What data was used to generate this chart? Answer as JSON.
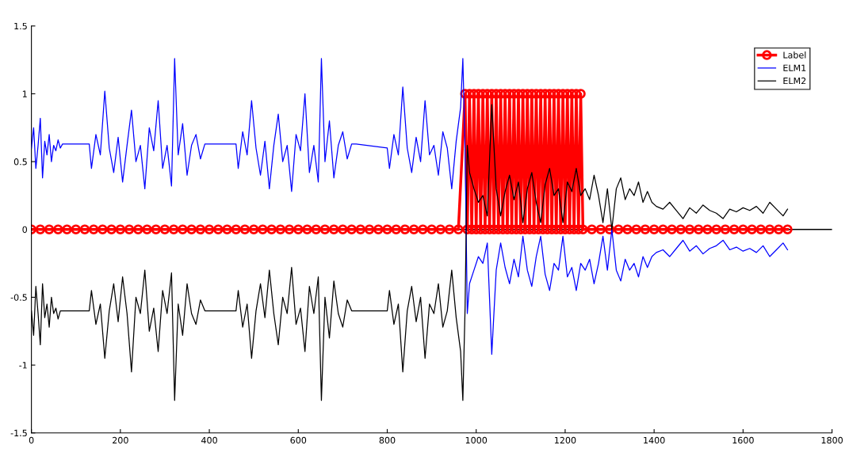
{
  "chart_data": {
    "type": "line",
    "xlim": [
      0,
      1800
    ],
    "xticks": [
      0,
      200,
      400,
      600,
      800,
      1000,
      1200,
      1400,
      1600,
      1800
    ],
    "ylim": [
      -1.5,
      1.5
    ],
    "yticks": [
      -1.5,
      -1,
      -0.5,
      0,
      0.5,
      1,
      1.5
    ],
    "grid": false,
    "legend": "top right",
    "ref_lines": [
      {
        "axis": "y",
        "value": 0,
        "color": "#000000"
      }
    ],
    "series": [
      {
        "name": "Label",
        "color": "#ff0000",
        "marker": "circle",
        "x": [
          0,
          20,
          40,
          60,
          80,
          100,
          120,
          140,
          160,
          180,
          200,
          220,
          240,
          260,
          280,
          300,
          320,
          340,
          360,
          380,
          400,
          420,
          440,
          460,
          480,
          500,
          520,
          540,
          560,
          580,
          600,
          620,
          640,
          660,
          680,
          700,
          720,
          740,
          760,
          780,
          800,
          820,
          840,
          860,
          880,
          900,
          920,
          940,
          960,
          975,
          980,
          985,
          990,
          995,
          1000,
          1005,
          1010,
          1015,
          1020,
          1025,
          1030,
          1035,
          1040,
          1045,
          1050,
          1055,
          1060,
          1065,
          1070,
          1075,
          1080,
          1085,
          1090,
          1095,
          1100,
          1105,
          1110,
          1115,
          1120,
          1125,
          1130,
          1135,
          1140,
          1145,
          1150,
          1155,
          1160,
          1165,
          1170,
          1175,
          1180,
          1185,
          1190,
          1195,
          1200,
          1205,
          1210,
          1215,
          1220,
          1225,
          1230,
          1235,
          1240,
          1260,
          1280,
          1300,
          1320,
          1340,
          1360,
          1380,
          1400,
          1420,
          1440,
          1460,
          1480,
          1500,
          1520,
          1540,
          1560,
          1580,
          1600,
          1620,
          1640,
          1660,
          1680,
          1700
        ],
        "values": [
          0,
          0,
          0,
          0,
          0,
          0,
          0,
          0,
          0,
          0,
          0,
          0,
          0,
          0,
          0,
          0,
          0,
          0,
          0,
          0,
          0,
          0,
          0,
          0,
          0,
          0,
          0,
          0,
          0,
          0,
          0,
          0,
          0,
          0,
          0,
          0,
          0,
          0,
          0,
          0,
          0,
          0,
          0,
          0,
          0,
          0,
          0,
          0,
          0,
          1,
          0,
          1,
          0,
          1,
          0,
          1,
          0,
          1,
          0,
          1,
          0,
          1,
          0,
          1,
          0,
          1,
          0,
          1,
          0,
          1,
          0,
          1,
          0,
          1,
          0,
          1,
          0,
          1,
          0,
          1,
          0,
          1,
          0,
          1,
          0,
          1,
          0,
          1,
          0,
          1,
          0,
          1,
          0,
          1,
          0,
          1,
          0,
          1,
          0,
          1,
          0,
          1,
          0,
          0,
          0,
          0,
          0,
          0,
          0,
          0,
          0,
          0,
          0,
          0,
          0,
          0,
          0,
          0,
          0,
          0,
          0,
          0,
          0,
          0,
          0,
          0
        ]
      },
      {
        "name": "ELM1",
        "color": "#0000ff",
        "x": [
          0,
          5,
          10,
          15,
          20,
          25,
          30,
          35,
          40,
          45,
          50,
          55,
          60,
          65,
          70,
          80,
          130,
          135,
          145,
          155,
          165,
          175,
          185,
          195,
          205,
          215,
          225,
          235,
          245,
          255,
          265,
          275,
          285,
          295,
          305,
          315,
          322,
          330,
          340,
          350,
          360,
          370,
          380,
          390,
          400,
          460,
          465,
          475,
          485,
          495,
          505,
          515,
          525,
          535,
          545,
          555,
          565,
          575,
          585,
          595,
          605,
          615,
          625,
          635,
          645,
          652,
          660,
          670,
          680,
          690,
          700,
          710,
          720,
          730,
          800,
          805,
          815,
          825,
          835,
          845,
          855,
          865,
          875,
          885,
          895,
          905,
          915,
          925,
          935,
          945,
          955,
          965,
          970,
          975,
          980,
          985,
          995,
          1005,
          1015,
          1025,
          1035,
          1045,
          1055,
          1065,
          1075,
          1085,
          1095,
          1105,
          1115,
          1125,
          1135,
          1145,
          1155,
          1165,
          1175,
          1185,
          1195,
          1205,
          1215,
          1225,
          1235,
          1245,
          1255,
          1265,
          1275,
          1285,
          1295,
          1305,
          1315,
          1325,
          1335,
          1345,
          1355,
          1365,
          1375,
          1385,
          1395,
          1405,
          1420,
          1435,
          1450,
          1465,
          1480,
          1495,
          1510,
          1525,
          1540,
          1555,
          1570,
          1585,
          1600,
          1615,
          1630,
          1645,
          1660,
          1675,
          1690,
          1700
        ],
        "values": [
          0.6,
          0.75,
          0.45,
          0.62,
          0.82,
          0.38,
          0.65,
          0.55,
          0.7,
          0.5,
          0.62,
          0.58,
          0.66,
          0.6,
          0.63,
          0.63,
          0.63,
          0.45,
          0.7,
          0.55,
          1.02,
          0.6,
          0.42,
          0.68,
          0.35,
          0.62,
          0.88,
          0.5,
          0.62,
          0.3,
          0.75,
          0.58,
          0.95,
          0.45,
          0.62,
          0.32,
          1.26,
          0.55,
          0.78,
          0.4,
          0.62,
          0.7,
          0.52,
          0.63,
          0.63,
          0.63,
          0.45,
          0.72,
          0.55,
          0.95,
          0.6,
          0.4,
          0.65,
          0.3,
          0.62,
          0.85,
          0.5,
          0.62,
          0.28,
          0.7,
          0.58,
          1.0,
          0.42,
          0.62,
          0.35,
          1.26,
          0.5,
          0.8,
          0.38,
          0.62,
          0.72,
          0.52,
          0.63,
          0.63,
          0.6,
          0.45,
          0.7,
          0.55,
          1.05,
          0.6,
          0.42,
          0.68,
          0.5,
          0.95,
          0.55,
          0.62,
          0.4,
          0.72,
          0.6,
          0.3,
          0.65,
          0.9,
          1.26,
          0.58,
          -0.62,
          -0.4,
          -0.3,
          -0.2,
          -0.25,
          -0.1,
          -0.92,
          -0.3,
          -0.1,
          -0.28,
          -0.4,
          -0.22,
          -0.35,
          -0.05,
          -0.3,
          -0.42,
          -0.2,
          -0.05,
          -0.33,
          -0.45,
          -0.25,
          -0.3,
          -0.05,
          -0.35,
          -0.28,
          -0.45,
          -0.25,
          -0.3,
          -0.22,
          -0.4,
          -0.25,
          -0.05,
          -0.3,
          0.0,
          -0.3,
          -0.38,
          -0.22,
          -0.3,
          -0.25,
          -0.35,
          -0.2,
          -0.28,
          -0.2,
          -0.17,
          -0.15,
          -0.2,
          -0.14,
          -0.08,
          -0.16,
          -0.12,
          -0.18,
          -0.14,
          -0.12,
          -0.08,
          -0.15,
          -0.13,
          -0.16,
          -0.14,
          -0.17,
          -0.12,
          -0.2,
          -0.15,
          -0.1,
          -0.15
        ]
      },
      {
        "name": "ELM2",
        "color": "#000000",
        "x": [
          0,
          5,
          10,
          15,
          20,
          25,
          30,
          35,
          40,
          45,
          50,
          55,
          60,
          65,
          70,
          80,
          130,
          135,
          145,
          155,
          165,
          175,
          185,
          195,
          205,
          215,
          225,
          235,
          245,
          255,
          265,
          275,
          285,
          295,
          305,
          315,
          322,
          330,
          340,
          350,
          360,
          370,
          380,
          390,
          400,
          460,
          465,
          475,
          485,
          495,
          505,
          515,
          525,
          535,
          545,
          555,
          565,
          575,
          585,
          595,
          605,
          615,
          625,
          635,
          645,
          652,
          660,
          670,
          680,
          690,
          700,
          710,
          720,
          730,
          800,
          805,
          815,
          825,
          835,
          845,
          855,
          865,
          875,
          885,
          895,
          905,
          915,
          925,
          935,
          945,
          955,
          965,
          970,
          975,
          980,
          985,
          995,
          1005,
          1015,
          1025,
          1035,
          1045,
          1055,
          1065,
          1075,
          1085,
          1095,
          1105,
          1115,
          1125,
          1135,
          1145,
          1155,
          1165,
          1175,
          1185,
          1195,
          1205,
          1215,
          1225,
          1235,
          1245,
          1255,
          1265,
          1275,
          1285,
          1295,
          1305,
          1315,
          1325,
          1335,
          1345,
          1355,
          1365,
          1375,
          1385,
          1395,
          1405,
          1420,
          1435,
          1450,
          1465,
          1480,
          1495,
          1510,
          1525,
          1540,
          1555,
          1570,
          1585,
          1600,
          1615,
          1630,
          1645,
          1660,
          1675,
          1690,
          1700
        ],
        "values": [
          -0.6,
          -0.78,
          -0.42,
          -0.62,
          -0.85,
          -0.4,
          -0.65,
          -0.55,
          -0.72,
          -0.5,
          -0.62,
          -0.58,
          -0.66,
          -0.6,
          -0.6,
          -0.6,
          -0.6,
          -0.45,
          -0.7,
          -0.55,
          -0.95,
          -0.6,
          -0.4,
          -0.68,
          -0.35,
          -0.62,
          -1.05,
          -0.5,
          -0.62,
          -0.3,
          -0.75,
          -0.58,
          -0.9,
          -0.45,
          -0.62,
          -0.32,
          -1.26,
          -0.55,
          -0.78,
          -0.4,
          -0.62,
          -0.7,
          -0.52,
          -0.6,
          -0.6,
          -0.6,
          -0.45,
          -0.72,
          -0.55,
          -0.95,
          -0.6,
          -0.4,
          -0.65,
          -0.3,
          -0.62,
          -0.85,
          -0.5,
          -0.62,
          -0.28,
          -0.7,
          -0.58,
          -0.9,
          -0.42,
          -0.62,
          -0.35,
          -1.26,
          -0.5,
          -0.8,
          -0.38,
          -0.62,
          -0.72,
          -0.52,
          -0.6,
          -0.6,
          -0.6,
          -0.45,
          -0.7,
          -0.55,
          -1.05,
          -0.6,
          -0.42,
          -0.68,
          -0.5,
          -0.95,
          -0.55,
          -0.62,
          -0.4,
          -0.72,
          -0.6,
          -0.3,
          -0.65,
          -0.9,
          -1.26,
          -0.58,
          0.62,
          0.42,
          0.3,
          0.2,
          0.25,
          0.1,
          0.92,
          0.3,
          0.1,
          0.28,
          0.4,
          0.22,
          0.35,
          0.05,
          0.3,
          0.42,
          0.2,
          0.05,
          0.33,
          0.45,
          0.25,
          0.3,
          0.05,
          0.35,
          0.28,
          0.45,
          0.25,
          0.3,
          0.22,
          0.4,
          0.25,
          0.05,
          0.3,
          0.0,
          0.3,
          0.38,
          0.22,
          0.3,
          0.25,
          0.35,
          0.2,
          0.28,
          0.2,
          0.17,
          0.15,
          0.2,
          0.14,
          0.08,
          0.16,
          0.12,
          0.18,
          0.14,
          0.12,
          0.08,
          0.15,
          0.13,
          0.16,
          0.14,
          0.17,
          0.12,
          0.2,
          0.15,
          0.1,
          0.15
        ]
      }
    ]
  }
}
